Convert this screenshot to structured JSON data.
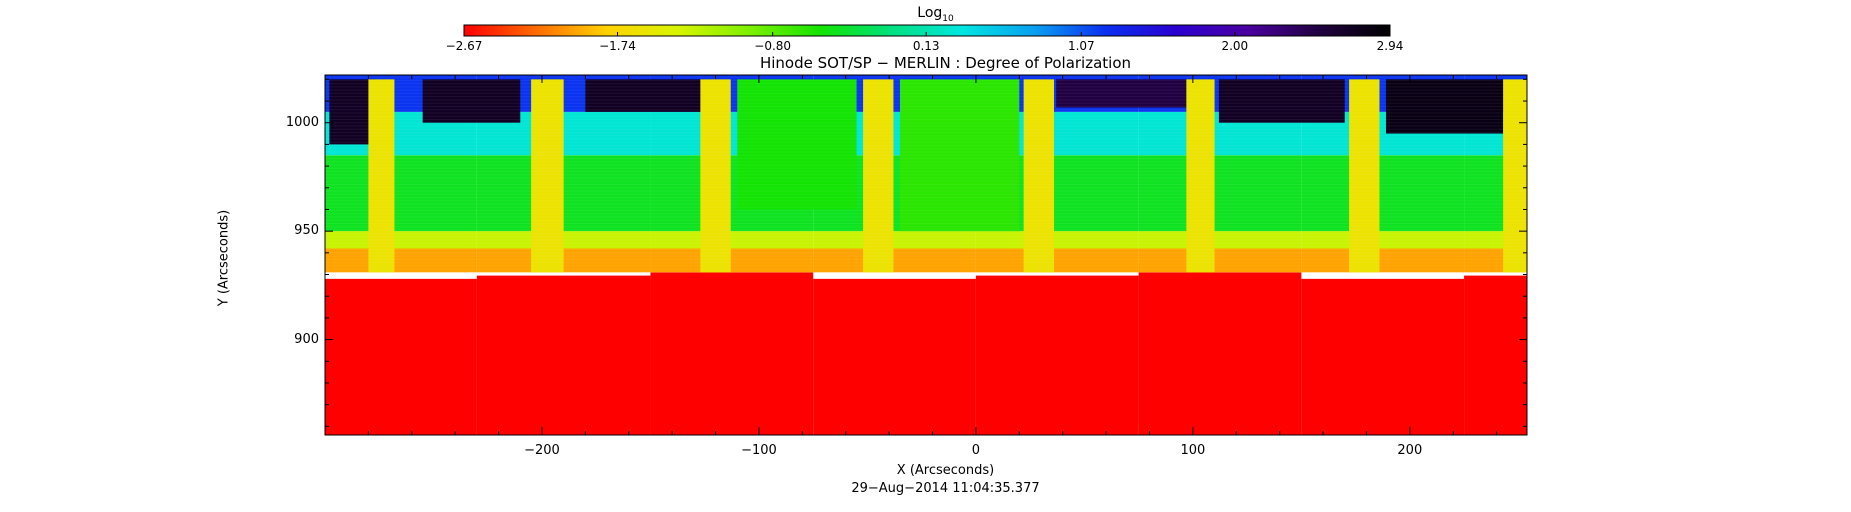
{
  "chart_data": {
    "type": "heatmap",
    "title": "Hinode SOT/SP − MERLIN : Degree of Polarization",
    "xlabel": "X (Arcseconds)",
    "ylabel": "Y (Arcseconds)",
    "footer": "29−Aug−2014 11:04:35.377",
    "xlim": [
      -300,
      254
    ],
    "ylim": [
      856,
      1022
    ],
    "x_ticks": [
      -200,
      -100,
      0,
      100,
      200
    ],
    "x_tick_labels": [
      "−200",
      "−100",
      "0",
      "100",
      "200"
    ],
    "y_ticks": [
      900,
      950,
      1000
    ],
    "y_tick_labels": [
      "900",
      "950",
      "1000"
    ],
    "colorbar": {
      "label": "Log",
      "label_subscript": "10",
      "range": [
        -2.67,
        2.94
      ],
      "ticks": [
        -2.67,
        -1.74,
        -0.8,
        0.13,
        1.07,
        2.0,
        2.94
      ],
      "tick_labels": [
        "−2.67",
        "−1.74",
        "−0.80",
        "0.13",
        "1.07",
        "2.00",
        "2.94"
      ],
      "colors": [
        "#ff0000",
        "#ff6a00",
        "#ffd200",
        "#d8f500",
        "#7ef000",
        "#14e400",
        "#00e07e",
        "#00e6e0",
        "#0aa0f0",
        "#0a30f0",
        "#2a00d0",
        "#4a00a0",
        "#200040",
        "#000000"
      ]
    },
    "limb_boundary_y": [
      928,
      931
    ],
    "scan_x_edges": [
      -300,
      -230,
      -150,
      -75,
      0,
      75,
      150,
      225,
      254
    ],
    "strips": [
      {
        "x": [
          -280,
          -268
        ],
        "y": [
          931,
          1020
        ],
        "value": -1.6
      },
      {
        "x": [
          -205,
          -190
        ],
        "y": [
          931,
          1020
        ],
        "value": -1.6
      },
      {
        "x": [
          -127,
          -113
        ],
        "y": [
          931,
          1020
        ],
        "value": -1.6
      },
      {
        "x": [
          -52,
          -38
        ],
        "y": [
          931,
          1020
        ],
        "value": -1.6
      },
      {
        "x": [
          22,
          36
        ],
        "y": [
          931,
          1020
        ],
        "value": -1.6
      },
      {
        "x": [
          97,
          110
        ],
        "y": [
          931,
          1020
        ],
        "value": -1.6
      },
      {
        "x": [
          172,
          186
        ],
        "y": [
          931,
          1020
        ],
        "value": -1.6
      },
      {
        "x": [
          243,
          254
        ],
        "y": [
          931,
          1020
        ],
        "value": -1.6
      }
    ],
    "bands": [
      {
        "y": [
          931,
          942
        ],
        "value": -2.0
      },
      {
        "y": [
          942,
          950
        ],
        "value": -1.3
      },
      {
        "y": [
          950,
          985
        ],
        "value": -0.4
      },
      {
        "y": [
          985,
          1005
        ],
        "value": 0.3
      },
      {
        "y": [
          1005,
          1022
        ],
        "value": 1.2
      }
    ],
    "saturated_patches": [
      {
        "x": [
          -298,
          -277
        ],
        "y": [
          990,
          1020
        ],
        "value": 2.7
      },
      {
        "x": [
          -255,
          -210
        ],
        "y": [
          1000,
          1020
        ],
        "value": 2.7
      },
      {
        "x": [
          -180,
          -125
        ],
        "y": [
          1005,
          1020
        ],
        "value": 2.7
      },
      {
        "x": [
          37,
          97
        ],
        "y": [
          1007,
          1020
        ],
        "value": 2.5
      },
      {
        "x": [
          112,
          170
        ],
        "y": [
          1000,
          1020
        ],
        "value": 2.7
      },
      {
        "x": [
          189,
          243
        ],
        "y": [
          995,
          1020
        ],
        "value": 2.8
      }
    ],
    "quiet_columns": [
      {
        "x": [
          -110,
          -55
        ],
        "y": [
          960,
          1020
        ],
        "value": -0.5
      },
      {
        "x": [
          -35,
          20
        ],
        "y": [
          950,
          1020
        ],
        "value": -0.6
      }
    ]
  }
}
